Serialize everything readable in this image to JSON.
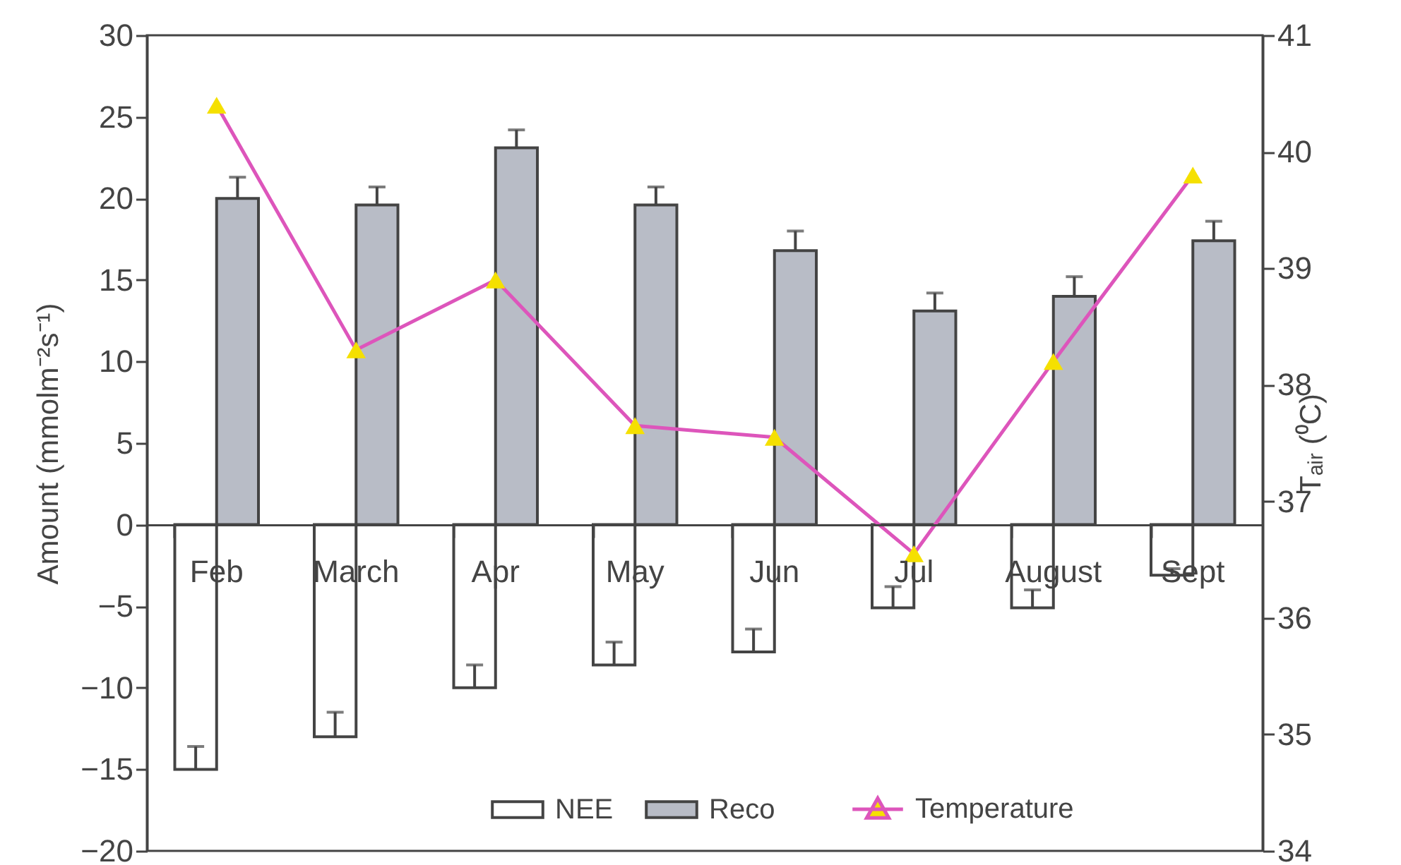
{
  "chart_data": {
    "type": "bar",
    "categories": [
      "Feb",
      "March",
      "Apr",
      "May",
      "Jun",
      "Jul",
      "August",
      "Sept"
    ],
    "ylabel": "Amount (mmolm⁻²s⁻¹)",
    "y2label": "Tₐᵢᵣ (⁰C)",
    "ylim": [
      -20,
      30
    ],
    "yticks": [
      -20,
      -15,
      -10,
      -5,
      0,
      5,
      10,
      15,
      20,
      25,
      30
    ],
    "y2lim": [
      34,
      41
    ],
    "y2ticks": [
      34,
      35,
      36,
      37,
      38,
      39,
      40,
      41
    ],
    "legend": "bottom right",
    "grid": false,
    "series": [
      {
        "name": "NEE",
        "color": "#ffffff",
        "values": [
          -15,
          -13,
          -10,
          -8.6,
          -7.8,
          -5.1,
          -5.1,
          -3.1
        ],
        "errors": [
          [
            -15,
            -13.6
          ],
          [
            -13,
            -11.5
          ],
          [
            -10,
            -8.6
          ],
          [
            -8.6,
            -7.2
          ],
          [
            -7.8,
            -6.4
          ],
          [
            -5.1,
            -3.8
          ],
          [
            -5.1,
            -4
          ],
          [
            -3.1,
            -2.7
          ]
        ]
      },
      {
        "name": "Reco",
        "color": "#b8bcc6",
        "values": [
          20,
          19.6,
          23.1,
          19.6,
          16.8,
          13.1,
          14,
          17.4
        ],
        "errors": [
          [
            20,
            21.3
          ],
          [
            19.6,
            20.7
          ],
          [
            23.1,
            24.2
          ],
          [
            19.6,
            20.7
          ],
          [
            16.8,
            18
          ],
          [
            13.1,
            14.2
          ],
          [
            14,
            15.2
          ],
          [
            17.4,
            18.6
          ]
        ]
      },
      {
        "name": "Temperature",
        "type": "line",
        "axis": "y2",
        "marker": "triangle",
        "color": "#dd55bb",
        "values": [
          40.4,
          38.3,
          38.9,
          37.65,
          37.55,
          36.55,
          38.2,
          39.8
        ]
      }
    ]
  }
}
